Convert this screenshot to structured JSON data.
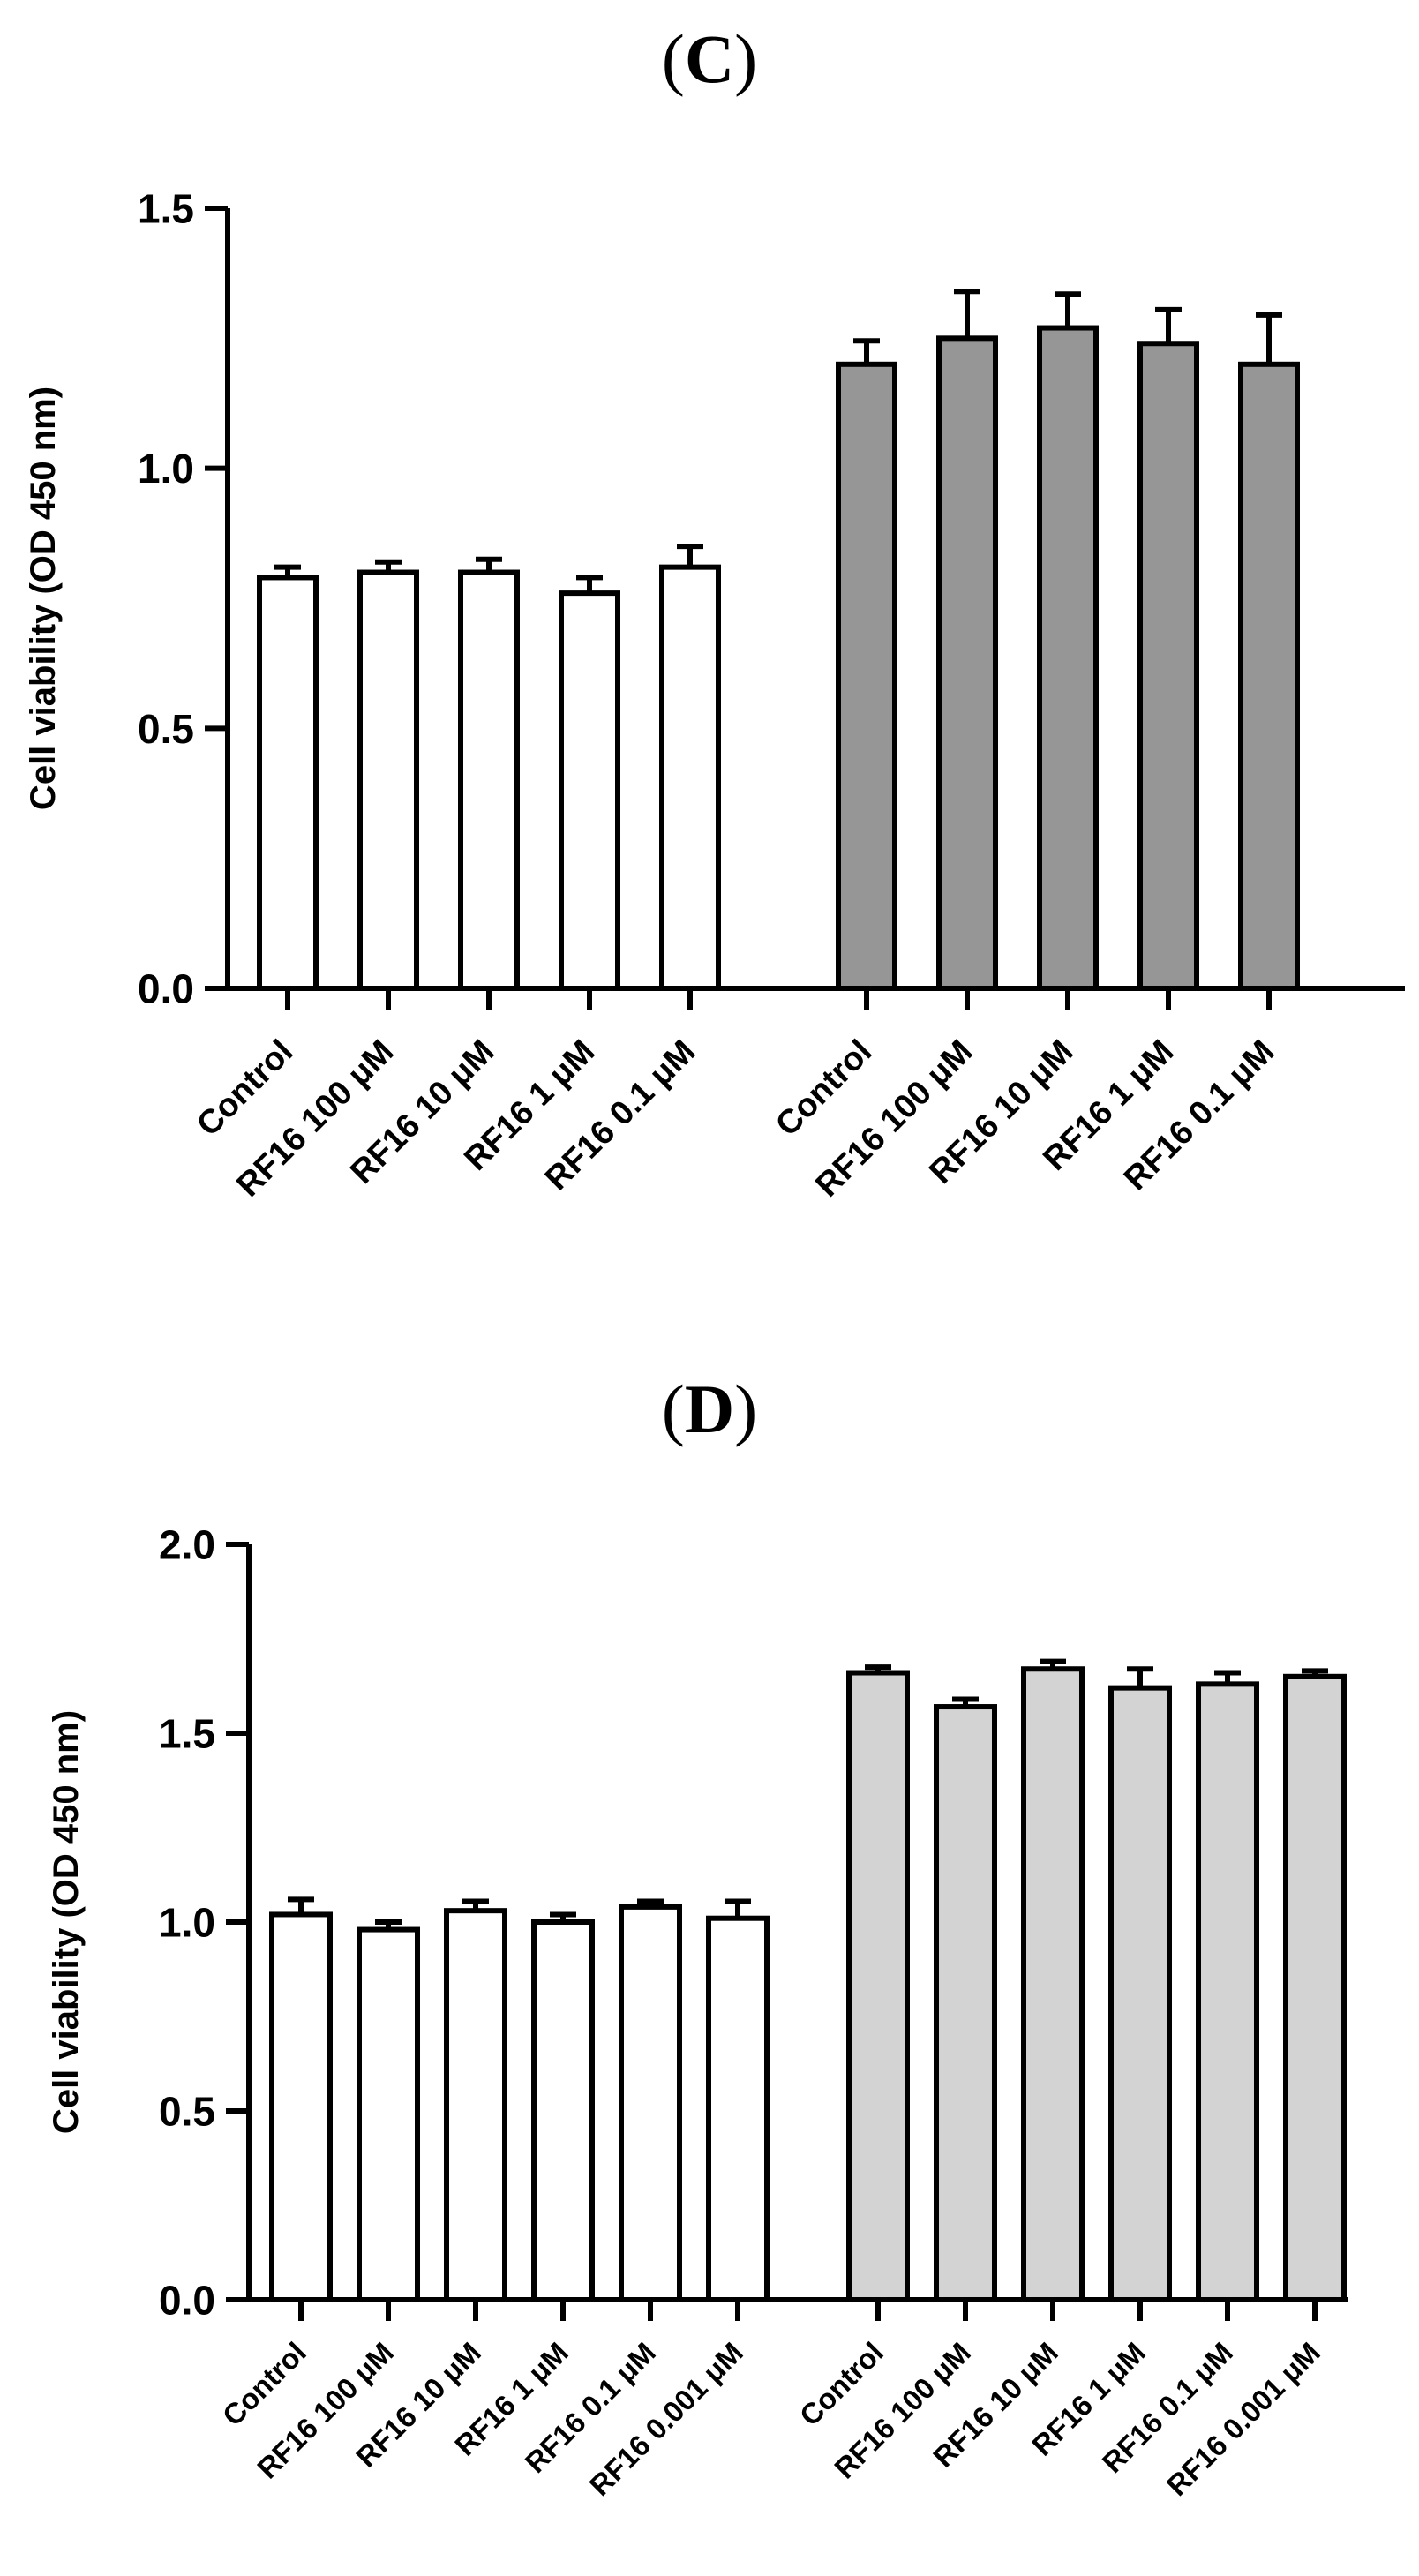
{
  "panels": [
    {
      "label": "(C)",
      "letter": "C"
    },
    {
      "label": "(D)",
      "letter": "D"
    }
  ],
  "chart_data": [
    {
      "type": "bar",
      "panel": "C",
      "title": "",
      "xlabel": "",
      "ylabel": "Cell viability (OD 450 nm)",
      "ylim": [
        0,
        1.5
      ],
      "yticks": [
        "0.0",
        "0.5",
        "1.0",
        "1.5"
      ],
      "grid": false,
      "legend": "none",
      "groups": [
        {
          "fill": "#ffffff",
          "categories": [
            "Control",
            "RF16 100 μM",
            "RF16 10 μM",
            "RF16 1 μM",
            "RF16 0.1 μM"
          ],
          "values": [
            0.79,
            0.8,
            0.8,
            0.76,
            0.81
          ],
          "errors": [
            0.02,
            0.02,
            0.025,
            0.03,
            0.04
          ]
        },
        {
          "fill": "#969696",
          "categories": [
            "Control",
            "RF16 100 μM",
            "RF16 10 μM",
            "RF16 1 μM",
            "RF16 0.1 μM"
          ],
          "values": [
            1.2,
            1.25,
            1.27,
            1.24,
            1.2
          ],
          "errors": [
            0.045,
            0.09,
            0.065,
            0.065,
            0.095
          ]
        }
      ]
    },
    {
      "type": "bar",
      "panel": "D",
      "title": "",
      "xlabel": "",
      "ylabel": "Cell viability (OD 450 nm)",
      "ylim": [
        0,
        2.0
      ],
      "yticks": [
        "0.0",
        "0.5",
        "1.0",
        "1.5",
        "2.0"
      ],
      "grid": false,
      "legend": "none",
      "groups": [
        {
          "fill": "#ffffff",
          "categories": [
            "Control",
            "RF16 100 μM",
            "RF16 10 μM",
            "RF16 1 μM",
            "RF16 0.1 μM",
            "RF16 0.001 μM"
          ],
          "values": [
            1.02,
            0.98,
            1.03,
            1.0,
            1.04,
            1.01
          ],
          "errors": [
            0.04,
            0.02,
            0.025,
            0.02,
            0.015,
            0.045
          ]
        },
        {
          "fill": "#d3d3d3",
          "categories": [
            "Control",
            "RF16 100 μM",
            "RF16 10 μM",
            "RF16 1 μM",
            "RF16 0.1 μM",
            "RF16 0.001 μM"
          ],
          "values": [
            1.66,
            1.57,
            1.67,
            1.62,
            1.63,
            1.65
          ],
          "errors": [
            0.015,
            0.02,
            0.02,
            0.05,
            0.03,
            0.015
          ]
        }
      ]
    }
  ]
}
